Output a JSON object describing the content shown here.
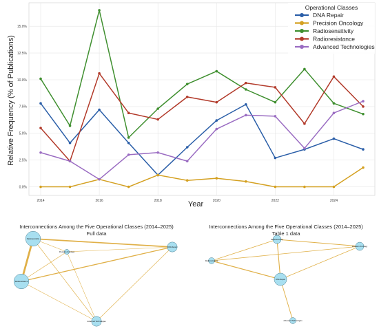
{
  "chart_data": [
    {
      "type": "line",
      "title": "",
      "xlabel": "Year",
      "ylabel": "Relative Frequency (% of Publications)",
      "x": [
        2014,
        2015,
        2016,
        2017,
        2018,
        2019,
        2020,
        2021,
        2022,
        2023,
        2024,
        2025
      ],
      "x_ticks": [
        2014,
        2016,
        2018,
        2020,
        2022,
        2024
      ],
      "x_tick_labels": [
        "2014",
        "2016",
        "2018",
        "2020",
        "2022",
        "2024"
      ],
      "xlim": [
        2013.6,
        2025.4
      ],
      "ylim": [
        -0.8,
        17.2
      ],
      "y_ticks": [
        0,
        2.5,
        5.0,
        7.5,
        10.0,
        12.5,
        15.0
      ],
      "y_tick_labels": [
        "0.0%",
        "2.5%",
        "5.0%",
        "7.5%",
        "10.0%",
        "12.5%",
        "15.0%"
      ],
      "grid": true,
      "legend_title": "Operational Classes",
      "legend_position": "top-right",
      "series": [
        {
          "name": "DNA Repair",
          "color": "#2a5ea8",
          "values": [
            7.8,
            4.1,
            7.2,
            4.1,
            1.1,
            3.7,
            6.2,
            7.7,
            2.7,
            3.5,
            4.5,
            3.5
          ]
        },
        {
          "name": "Precision Oncology",
          "color": "#d4a020",
          "values": [
            0.0,
            0.0,
            0.7,
            0.0,
            1.1,
            0.6,
            0.8,
            0.5,
            0.0,
            0.0,
            0.0,
            1.8
          ]
        },
        {
          "name": "Radiosensitivity",
          "color": "#3f8f2f",
          "values": [
            10.1,
            5.7,
            16.5,
            4.6,
            7.3,
            9.6,
            10.8,
            9.1,
            7.9,
            11.0,
            7.8,
            6.8
          ]
        },
        {
          "name": "Radioresistance",
          "color": "#b23a2a",
          "values": [
            5.5,
            2.4,
            10.6,
            6.9,
            6.3,
            8.4,
            7.9,
            9.7,
            9.3,
            5.9,
            10.3,
            7.5
          ]
        },
        {
          "name": "Advanced Technologies",
          "color": "#9a6cc2",
          "values": [
            3.2,
            2.4,
            0.7,
            3.0,
            3.2,
            2.4,
            5.4,
            6.7,
            6.6,
            3.6,
            6.9,
            8.0
          ]
        }
      ]
    },
    {
      "type": "network",
      "title": "Interconnections Among the Five Operational Classes (2014–2025)",
      "subtitle": "Full data",
      "nodes": [
        {
          "id": "radiosensitivity",
          "label": "Radiosensitivity",
          "size": 3
        },
        {
          "id": "radioresistance",
          "label": "Radioresistance",
          "size": 3
        },
        {
          "id": "dna_repair",
          "label": "DNA Repair",
          "size": 2
        },
        {
          "id": "precision_oncology",
          "label": "Precision Oncology",
          "size": 1
        },
        {
          "id": "advanced_technologies",
          "label": "Advanced Technologies",
          "size": 2
        }
      ],
      "edges": [
        {
          "source": "radiosensitivity",
          "target": "radioresistance",
          "weight": 5
        },
        {
          "source": "radiosensitivity",
          "target": "dna_repair",
          "weight": 3
        },
        {
          "source": "radiosensitivity",
          "target": "precision_oncology",
          "weight": 1.2
        },
        {
          "source": "radiosensitivity",
          "target": "advanced_technologies",
          "weight": 1.2
        },
        {
          "source": "radioresistance",
          "target": "dna_repair",
          "weight": 2.5
        },
        {
          "source": "radioresistance",
          "target": "precision_oncology",
          "weight": 1.2
        },
        {
          "source": "radioresistance",
          "target": "advanced_technologies",
          "weight": 1
        },
        {
          "source": "dna_repair",
          "target": "advanced_technologies",
          "weight": 1.2
        },
        {
          "source": "precision_oncology",
          "target": "dna_repair",
          "weight": 1
        },
        {
          "source": "precision_oncology",
          "target": "advanced_technologies",
          "weight": 1
        }
      ]
    },
    {
      "type": "network",
      "title": "Interconnections Among the Five Operational Classes (2014–2025)",
      "subtitle": "Table 1 data",
      "nodes": [
        {
          "id": "radiosensitivity",
          "label": "Radiosensitivity",
          "size": 2
        },
        {
          "id": "precision_oncology",
          "label": "Precision Oncology",
          "size": 2
        },
        {
          "id": "radioresistance",
          "label": "Radioresistance",
          "size": 1.5
        },
        {
          "id": "dna_repair",
          "label": "DNA Repair",
          "size": 3
        },
        {
          "id": "advanced_technologies",
          "label": "Advanced Technologies",
          "size": 1.5
        }
      ],
      "edges": [
        {
          "source": "radiosensitivity",
          "target": "precision_oncology",
          "weight": 1.2
        },
        {
          "source": "radiosensitivity",
          "target": "radioresistance",
          "weight": 1
        },
        {
          "source": "radiosensitivity",
          "target": "dna_repair",
          "weight": 1.4
        },
        {
          "source": "radioresistance",
          "target": "precision_oncology",
          "weight": 1
        },
        {
          "source": "radioresistance",
          "target": "dna_repair",
          "weight": 1.6
        },
        {
          "source": "dna_repair",
          "target": "precision_oncology",
          "weight": 1
        },
        {
          "source": "dna_repair",
          "target": "advanced_technologies",
          "weight": 1.2
        }
      ]
    }
  ]
}
